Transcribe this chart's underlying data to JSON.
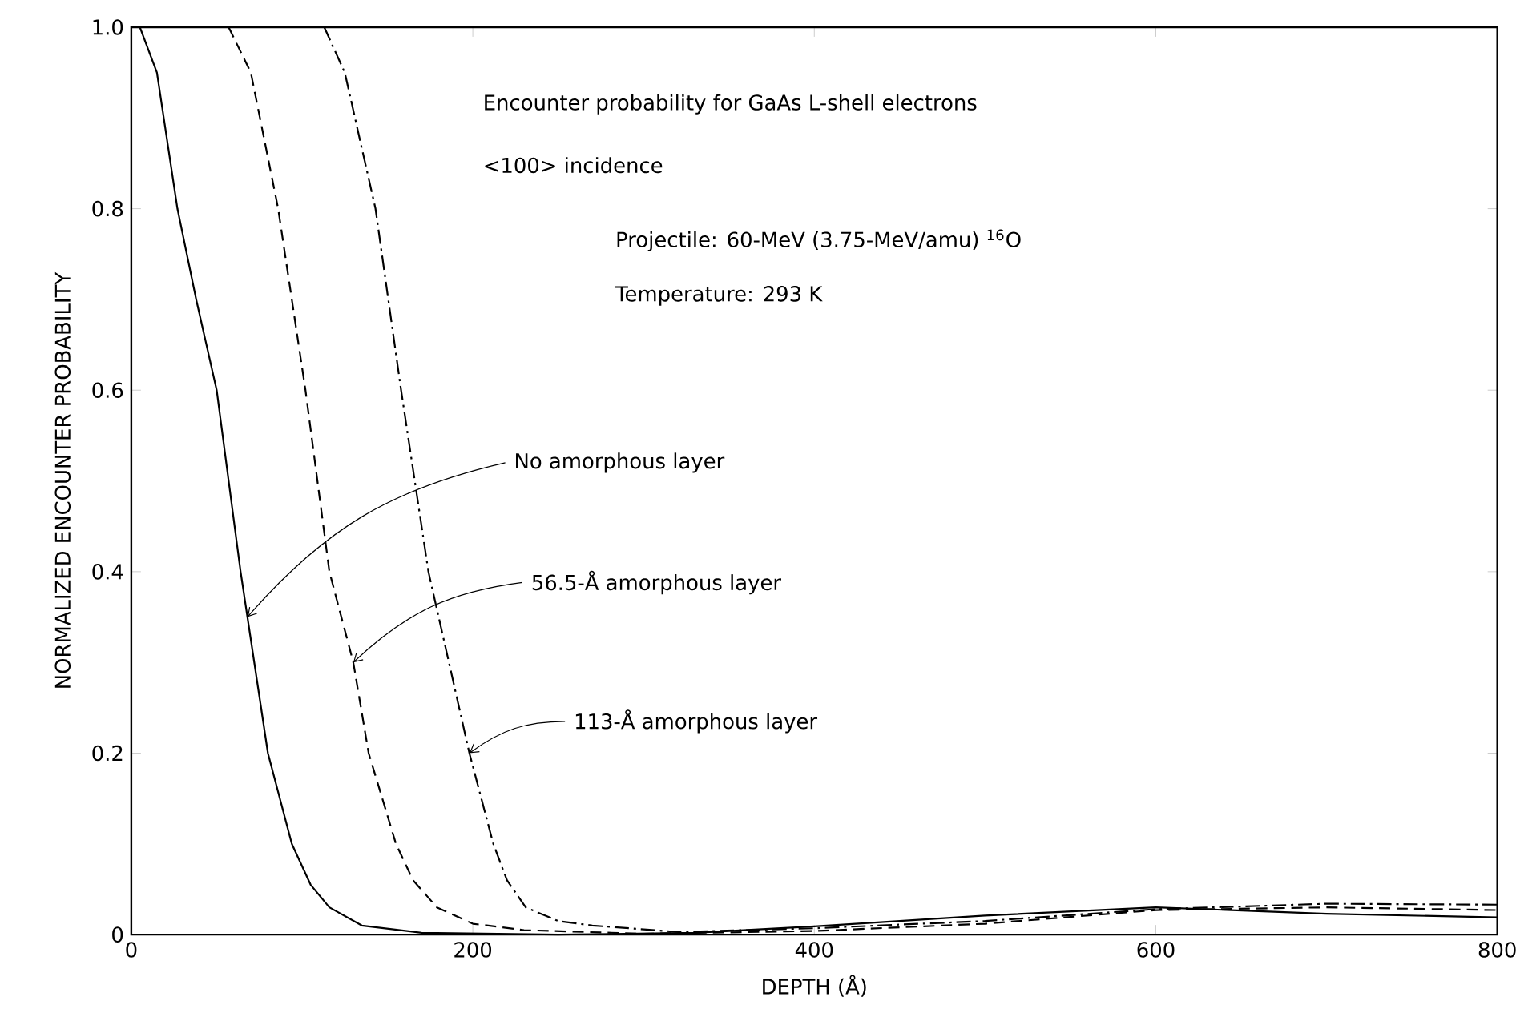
{
  "chart_data": {
    "type": "line",
    "xlabel": "DEPTH (Å)",
    "ylabel": "NORMALIZED ENCOUNTER PROBABILITY",
    "xlim": [
      0,
      800
    ],
    "ylim": [
      0,
      1
    ],
    "xticks": [
      0,
      200,
      400,
      600,
      800
    ],
    "yticks": [
      0,
      0.2,
      0.4,
      0.6,
      0.8,
      {
        "value": 1,
        "label": "1.0"
      }
    ],
    "grid": false,
    "marker": "none",
    "series": [
      {
        "color": "#000000",
        "line_style": "solid",
        "x": [
          5,
          15,
          27,
          38,
          50,
          57,
          64,
          68,
          80,
          94,
          105,
          116,
          135,
          170,
          250,
          330,
          400,
          500,
          600,
          700,
          800
        ],
        "values": [
          1.0,
          0.95,
          0.8,
          0.7,
          0.6,
          0.5,
          0.4,
          0.35,
          0.2,
          0.1,
          0.055,
          0.03,
          0.01,
          0.002,
          0,
          0.002,
          0.009,
          0.021,
          0.03,
          0.023,
          0.019
        ]
      },
      {
        "color": "#000000",
        "line_style": "dashed",
        "x": [
          57,
          70,
          86,
          102,
          116,
          130,
          139,
          155,
          165,
          179,
          200,
          230,
          300,
          400,
          500,
          600,
          700,
          800
        ],
        "values": [
          1.0,
          0.95,
          0.8,
          0.6,
          0.4,
          0.3,
          0.2,
          0.1,
          0.06,
          0.03,
          0.012,
          0.005,
          0.001,
          0.004,
          0.012,
          0.027,
          0.03,
          0.027
        ]
      },
      {
        "color": "#000000",
        "line_style": "dashdot",
        "x": [
          113,
          125,
          143,
          158,
          174,
          198,
          212,
          220,
          231,
          250,
          270,
          320,
          400,
          500,
          600,
          700,
          800
        ],
        "values": [
          1.0,
          0.95,
          0.8,
          0.6,
          0.4,
          0.2,
          0.1,
          0.06,
          0.03,
          0.015,
          0.01,
          0.003,
          0.007,
          0.015,
          0.028,
          0.034,
          0.033
        ]
      }
    ],
    "annotations": [
      "Encounter probability for GaAs L-shell electrons",
      "<100> incidence",
      "Projectile: 60-MeV (3.75-MeV/amu) $^{16}$O",
      "Temperature: 293 K",
      {
        "text": "No amorphous layer",
        "x": 68,
        "y": 0.35
      },
      {
        "text": "56.5-Å amorphous layer",
        "x": 130,
        "y": 0.3
      },
      {
        "text": "113-Å amorphous layer",
        "x": 198,
        "y": 0.2
      }
    ]
  }
}
